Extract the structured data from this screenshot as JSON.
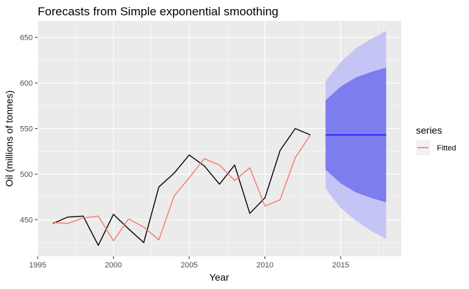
{
  "chart_data": {
    "type": "line",
    "title": "Forecasts from Simple exponential smoothing",
    "xlabel": "Year",
    "ylabel": "Oil (millions of tonnes)",
    "xlim": [
      1995,
      2019
    ],
    "ylim": [
      410,
      668
    ],
    "x_ticks": [
      1995,
      2000,
      2005,
      2010,
      2015
    ],
    "y_ticks": [
      450,
      500,
      550,
      600,
      650
    ],
    "grid": true,
    "legend": {
      "title": "series",
      "position": "right",
      "entries": [
        "Fitted"
      ]
    },
    "series": [
      {
        "type": "line",
        "color": "#000000",
        "x": [
          1996,
          1997,
          1998,
          1999,
          2000,
          2001,
          2002,
          2003,
          2004,
          2005,
          2006,
          2007,
          2008,
          2009,
          2010,
          2011,
          2012,
          2013
        ],
        "y": [
          446,
          453,
          454,
          422,
          456,
          440,
          425,
          486,
          501,
          521,
          509,
          489,
          510,
          457,
          474,
          526,
          550,
          543
        ]
      },
      {
        "name": "Fitted",
        "type": "line",
        "color": "#f8766d",
        "x": [
          1996,
          1997,
          1998,
          1999,
          2000,
          2001,
          2002,
          2003,
          2004,
          2005,
          2006,
          2007,
          2008,
          2009,
          2010,
          2011,
          2012,
          2013
        ],
        "y": [
          447,
          446,
          452,
          454,
          427,
          451,
          442,
          428,
          476,
          496,
          517,
          510,
          493,
          507,
          465,
          472,
          518,
          543
        ]
      },
      {
        "type": "forecast",
        "color": "#0000ff",
        "x": [
          2014,
          2015,
          2016,
          2017,
          2018
        ],
        "mean": [
          543,
          543,
          543,
          543,
          543
        ],
        "lo80": [
          505,
          490,
          480,
          474,
          469
        ],
        "hi80": [
          581,
          596,
          606,
          612,
          617
        ],
        "lo95": [
          484,
          463,
          449,
          438,
          429
        ],
        "hi95": [
          602,
          623,
          638,
          648,
          657
        ]
      }
    ],
    "colors": {
      "panel": "#ebebeb",
      "grid": "#ffffff",
      "band80": "#7d7def",
      "band95": "#c5c5f5",
      "actual": "#000000",
      "fitted": "#f8766d",
      "forecast": "#0000ff"
    }
  }
}
